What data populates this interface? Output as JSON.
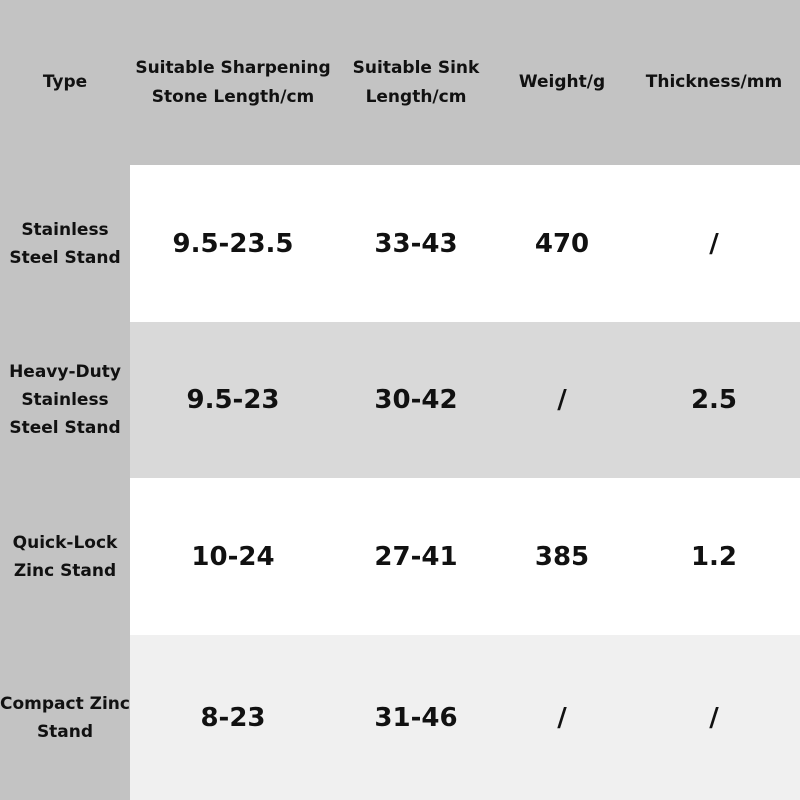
{
  "headers": [
    "Type",
    "Suitable Sharpening Stone Length/cm",
    "Suitable Sink Length/cm",
    "Weight/g",
    "Thickness/mm"
  ],
  "rows": [
    {
      "type": "Stainless Steel Stand",
      "cells": [
        "9.5-23.5",
        "33-43",
        "470",
        "/"
      ],
      "bg": "#ffffff"
    },
    {
      "type": "Heavy-Duty Stainless Steel Stand",
      "cells": [
        "9.5-23",
        "30-42",
        "/",
        "2.5"
      ],
      "bg": "#d9d9d9"
    },
    {
      "type": "Quick-Lock Zinc Stand",
      "cells": [
        "10-24",
        "27-41",
        "385",
        "1.2"
      ],
      "bg": "#ffffff"
    },
    {
      "type": "Compact Zinc Stand",
      "cells": [
        "8-23",
        "31-46",
        "/",
        "/"
      ],
      "bg": "#f0f0f0"
    }
  ],
  "colors": {
    "header_bg": "#c3c3c3"
  }
}
